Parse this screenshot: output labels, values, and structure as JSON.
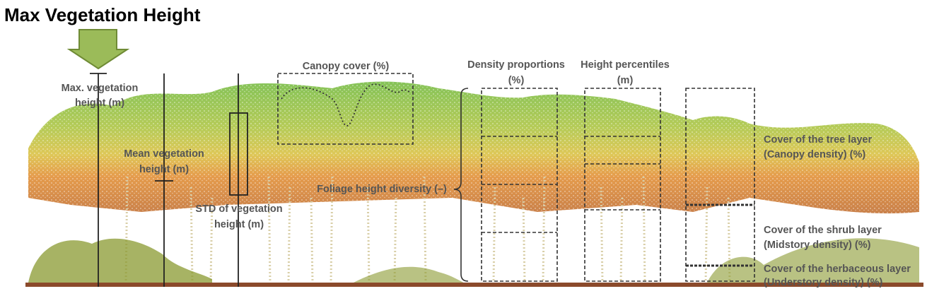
{
  "title": "Max Vegetation Height",
  "labels": {
    "max_height": [
      "Max. vegetation",
      "height (m)"
    ],
    "mean_height": [
      "Mean vegetation",
      "height (m)"
    ],
    "std_height": [
      "STD of vegetation",
      "height (m)"
    ],
    "canopy_cover": "Canopy cover (%)",
    "foliage_diversity": "Foliage height diversity (–)",
    "density_proportions": [
      "Density proportions",
      "(%)"
    ],
    "height_percentiles": [
      "Height percentiles",
      "(m)"
    ],
    "tree_layer": [
      "Cover of the tree layer",
      "(Canopy density) (%)"
    ],
    "shrub_layer": [
      "Cover of the shrub layer",
      "(Midstory density) (%)"
    ],
    "herbaceous_layer": [
      "Cover of the herbaceous layer",
      "(Understory density) (%)"
    ]
  },
  "colors": {
    "arrow_fill": "#9bbb59",
    "arrow_stroke": "#6f8b35",
    "label_text": "#555555",
    "line": "#222222",
    "ground": "#8b4a2b",
    "canopy_top": "#6fb83a",
    "canopy_mid": "#c9c43a",
    "canopy_low": "#e08a2c",
    "trunk": "#d9cfa8",
    "shrub": "#7a8a2a"
  },
  "icons": {
    "arrow": "down-arrow-icon"
  }
}
